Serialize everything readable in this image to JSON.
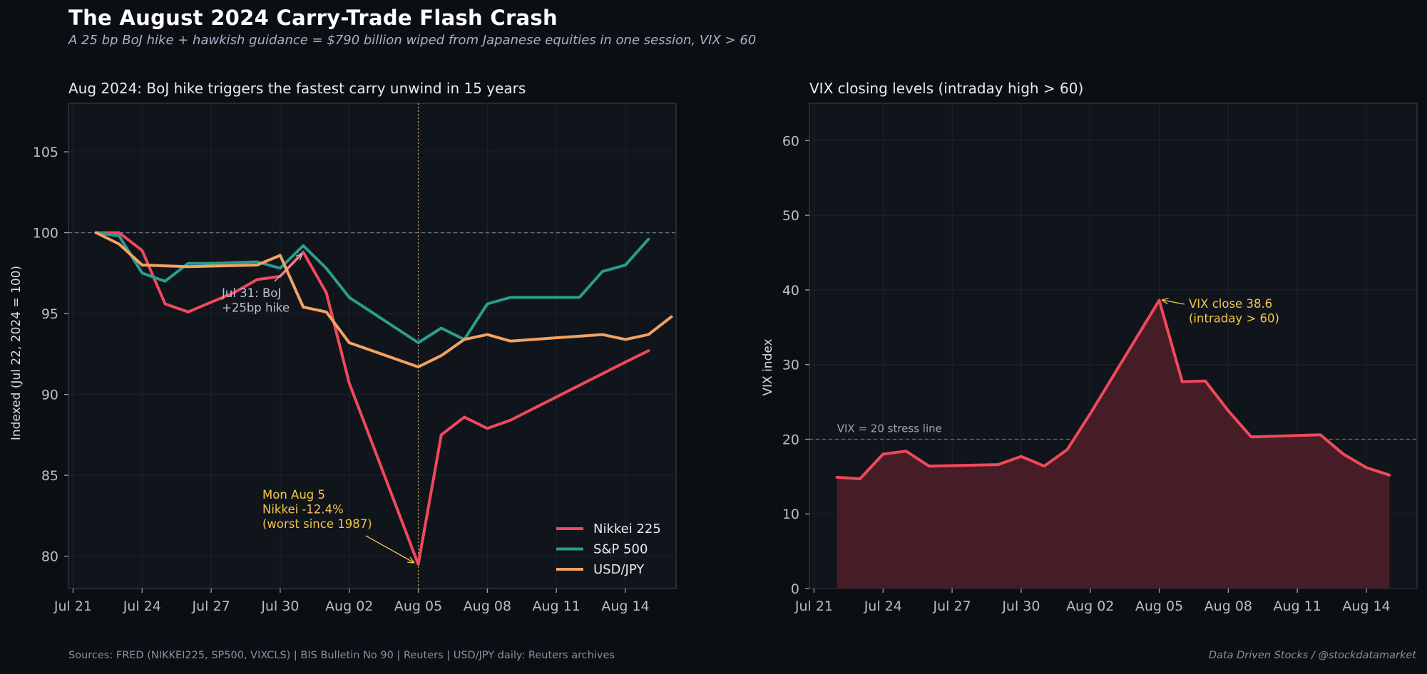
{
  "header": {
    "title": "The August 2024 Carry-Trade Flash Crash",
    "subtitle": "A 25 bp BoJ hike + hawkish guidance = $790 billion wiped from Japanese equities in one session, VIX > 60"
  },
  "footer": {
    "sources": "Sources: FRED (NIKKEI225, SP500, VIXCLS)  |  BIS Bulletin No 90  |  Reuters  |  USD/JPY daily: Reuters archives",
    "credit": "Data Driven Stocks / @stockdatamarket"
  },
  "colors": {
    "nikkei": "#f0495c",
    "sp500": "#2a9d8f",
    "usdjpy": "#f4a261",
    "annot_gold": "#f2c54b",
    "annot_gray": "#b7c2d0",
    "vix_fill": "#4a1e27"
  },
  "chart_data": [
    {
      "type": "line",
      "title": "Aug 2024: BoJ hike triggers the fastest carry unwind in 15 years",
      "xlabel": "",
      "ylabel": "Indexed (Jul 22, 2024 = 100)",
      "xlim": [
        -0.2,
        26.2
      ],
      "ylim": [
        78,
        108
      ],
      "x_ticks": [
        {
          "x": 0,
          "label": "Jul 21"
        },
        {
          "x": 3,
          "label": "Jul 24"
        },
        {
          "x": 6,
          "label": "Jul 27"
        },
        {
          "x": 9,
          "label": "Jul 30"
        },
        {
          "x": 12,
          "label": "Aug 02"
        },
        {
          "x": 15,
          "label": "Aug 05"
        },
        {
          "x": 18,
          "label": "Aug 08"
        },
        {
          "x": 21,
          "label": "Aug 11"
        },
        {
          "x": 24,
          "label": "Aug 14"
        }
      ],
      "y_ticks": [
        80,
        85,
        90,
        95,
        100,
        105
      ],
      "reference_lines": [
        {
          "axis": "y",
          "value": 100,
          "style": "dashed"
        },
        {
          "axis": "x",
          "value": 15,
          "style": "dotted"
        }
      ],
      "legend_position": "lower-right",
      "series": [
        {
          "name": "Nikkei 225",
          "color_key": "nikkei",
          "points": [
            [
              1,
              100
            ],
            [
              2,
              100
            ],
            [
              3,
              98.9
            ],
            [
              4,
              95.6
            ],
            [
              5,
              95.1
            ],
            [
              6,
              95.7
            ],
            [
              7,
              96.3
            ],
            [
              8,
              97.1
            ],
            [
              9,
              97.3
            ],
            [
              10,
              98.8
            ],
            [
              11,
              96.3
            ],
            [
              12,
              90.7
            ],
            [
              15,
              79.5
            ],
            [
              16,
              87.5
            ],
            [
              17,
              88.6
            ],
            [
              18,
              87.9
            ],
            [
              19,
              88.4
            ],
            [
              24,
              92.0
            ],
            [
              25,
              92.7
            ]
          ]
        },
        {
          "name": "S&P 500",
          "color_key": "sp500",
          "points": [
            [
              1,
              100
            ],
            [
              2,
              99.8
            ],
            [
              3,
              97.5
            ],
            [
              4,
              97.0
            ],
            [
              5,
              98.1
            ],
            [
              6,
              98.1
            ],
            [
              8,
              98.2
            ],
            [
              9,
              97.8
            ],
            [
              10,
              99.2
            ],
            [
              11,
              97.8
            ],
            [
              12,
              96.0
            ],
            [
              15,
              93.2
            ],
            [
              16,
              94.1
            ],
            [
              17,
              93.4
            ],
            [
              18,
              95.6
            ],
            [
              19,
              96.0
            ],
            [
              22,
              96.0
            ],
            [
              23,
              97.6
            ],
            [
              24,
              98.0
            ],
            [
              25,
              99.6
            ]
          ]
        },
        {
          "name": "USD/JPY",
          "color_key": "usdjpy",
          "points": [
            [
              1,
              100
            ],
            [
              2,
              99.3
            ],
            [
              3,
              98.0
            ],
            [
              5,
              97.9
            ],
            [
              8,
              98.0
            ],
            [
              9,
              98.6
            ],
            [
              10,
              95.4
            ],
            [
              11,
              95.1
            ],
            [
              12,
              93.2
            ],
            [
              15,
              91.7
            ],
            [
              16,
              92.4
            ],
            [
              17,
              93.4
            ],
            [
              18,
              93.7
            ],
            [
              19,
              93.3
            ],
            [
              23,
              93.7
            ],
            [
              24,
              93.4
            ],
            [
              25,
              93.7
            ],
            [
              26,
              94.8
            ]
          ]
        }
      ],
      "annotations": [
        {
          "text": [
            "Jul 31: BoJ",
            "+25bp hike"
          ],
          "x": 9,
          "y": 97.3,
          "color_key": "annot_gray"
        },
        {
          "text": [
            "Mon Aug 5",
            "Nikkei -12.4%",
            "(worst since 1987)"
          ],
          "x": 15,
          "y": 79.5,
          "color_key": "annot_gold"
        }
      ]
    },
    {
      "type": "area",
      "title": "VIX closing levels (intraday high > 60)",
      "xlabel": "",
      "ylabel": "VIX index",
      "xlim": [
        -0.2,
        26.2
      ],
      "ylim": [
        0,
        65
      ],
      "x_ticks": [
        {
          "x": 0,
          "label": "Jul 21"
        },
        {
          "x": 3,
          "label": "Jul 24"
        },
        {
          "x": 6,
          "label": "Jul 27"
        },
        {
          "x": 9,
          "label": "Jul 30"
        },
        {
          "x": 12,
          "label": "Aug 02"
        },
        {
          "x": 15,
          "label": "Aug 05"
        },
        {
          "x": 18,
          "label": "Aug 08"
        },
        {
          "x": 21,
          "label": "Aug 11"
        },
        {
          "x": 24,
          "label": "Aug 14"
        }
      ],
      "y_ticks": [
        0,
        10,
        20,
        30,
        40,
        50,
        60
      ],
      "reference_lines": [
        {
          "axis": "y",
          "value": 20,
          "style": "dashed",
          "label": "VIX = 20 stress line"
        }
      ],
      "series": [
        {
          "name": "VIX",
          "color_key": "nikkei",
          "points": [
            [
              1,
              14.9
            ],
            [
              2,
              14.7
            ],
            [
              3,
              18.0
            ],
            [
              4,
              18.4
            ],
            [
              5,
              16.4
            ],
            [
              8,
              16.6
            ],
            [
              9,
              17.7
            ],
            [
              10,
              16.4
            ],
            [
              11,
              18.6
            ],
            [
              12,
              23.4
            ],
            [
              15,
              38.6
            ],
            [
              16,
              27.7
            ],
            [
              17,
              27.8
            ],
            [
              18,
              23.8
            ],
            [
              19,
              20.3
            ],
            [
              22,
              20.6
            ],
            [
              23,
              18.0
            ],
            [
              24,
              16.2
            ],
            [
              25,
              15.2
            ]
          ]
        }
      ],
      "annotations": [
        {
          "text": [
            "VIX close 38.6",
            "(intraday > 60)"
          ],
          "x": 15,
          "y": 38.6,
          "color_key": "annot_gold"
        }
      ]
    }
  ]
}
